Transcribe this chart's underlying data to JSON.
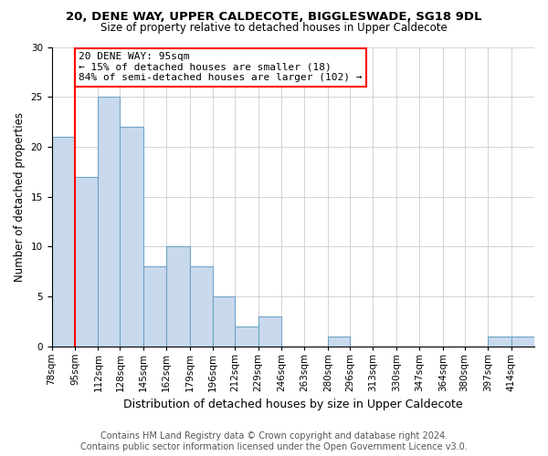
{
  "title1": "20, DENE WAY, UPPER CALDECOTE, BIGGLESWADE, SG18 9DL",
  "title2": "Size of property relative to detached houses in Upper Caldecote",
  "xlabel": "Distribution of detached houses by size in Upper Caldecote",
  "ylabel": "Number of detached properties",
  "footer1": "Contains HM Land Registry data © Crown copyright and database right 2024.",
  "footer2": "Contains public sector information licensed under the Open Government Licence v3.0.",
  "bin_labels": [
    "78sqm",
    "95sqm",
    "112sqm",
    "128sqm",
    "145sqm",
    "162sqm",
    "179sqm",
    "196sqm",
    "212sqm",
    "229sqm",
    "246sqm",
    "263sqm",
    "280sqm",
    "296sqm",
    "313sqm",
    "330sqm",
    "347sqm",
    "364sqm",
    "380sqm",
    "397sqm",
    "414sqm"
  ],
  "bin_edges": [
    78,
    95,
    112,
    128,
    145,
    162,
    179,
    196,
    212,
    229,
    246,
    263,
    280,
    296,
    313,
    330,
    347,
    364,
    380,
    397,
    414,
    431
  ],
  "heights": [
    21,
    17,
    25,
    22,
    8,
    10,
    8,
    5,
    2,
    3,
    0,
    0,
    1,
    0,
    0,
    0,
    0,
    0,
    0,
    1,
    1
  ],
  "bar_color": "#c9d9ed",
  "bar_edge_color": "#6ea3c8",
  "red_line_x": 95,
  "ylim": [
    0,
    30
  ],
  "yticks": [
    0,
    5,
    10,
    15,
    20,
    25,
    30
  ],
  "annotation_line1": "20 DENE WAY: 95sqm",
  "annotation_line2": "← 15% of detached houses are smaller (18)",
  "annotation_line3": "84% of semi-detached houses are larger (102) →",
  "annotation_box_color": "white",
  "annotation_box_edge_color": "red",
  "bg_color": "white",
  "grid_color": "#cccccc",
  "title1_fontsize": 9.5,
  "title2_fontsize": 8.5,
  "xlabel_fontsize": 9,
  "ylabel_fontsize": 8.5,
  "tick_fontsize": 7.5,
  "footer_fontsize": 7,
  "annotation_fontsize": 8
}
